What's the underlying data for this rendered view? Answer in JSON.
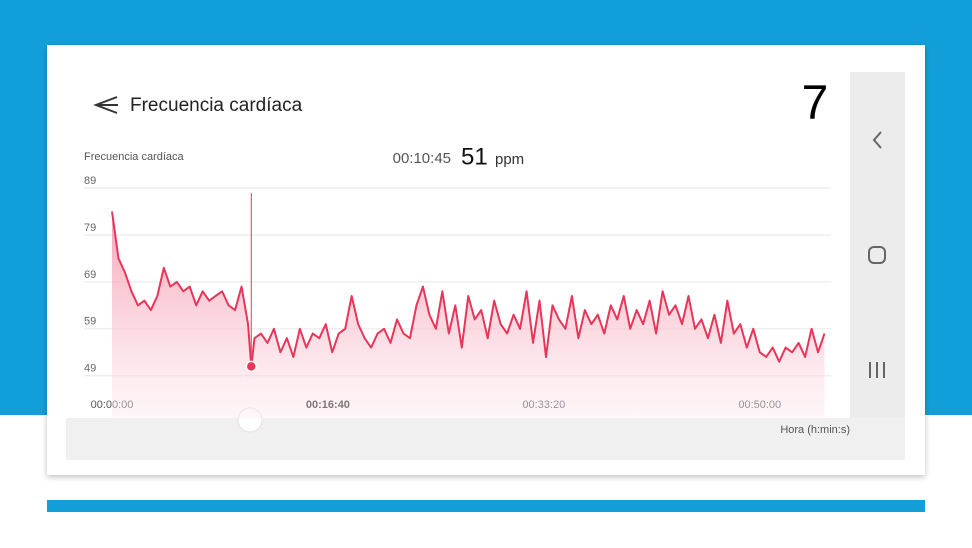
{
  "header": {
    "title": "Frecuencia cardíaca",
    "step": "7"
  },
  "chart_data": {
    "type": "line",
    "title": "Frecuencia cardíaca",
    "x_label": "Hora (h:min:s)",
    "x": [
      0,
      30,
      60,
      90,
      120,
      150,
      180,
      210,
      240,
      270,
      300,
      330,
      360,
      390,
      420,
      450,
      480,
      510,
      540,
      570,
      600,
      630,
      645,
      660,
      690,
      720,
      750,
      780,
      810,
      840,
      870,
      900,
      930,
      960,
      990,
      1020,
      1050,
      1080,
      1110,
      1140,
      1170,
      1200,
      1230,
      1260,
      1290,
      1320,
      1350,
      1380,
      1410,
      1440,
      1470,
      1500,
      1530,
      1560,
      1590,
      1620,
      1650,
      1680,
      1710,
      1740,
      1770,
      1800,
      1830,
      1860,
      1890,
      1920,
      1950,
      1980,
      2010,
      2040,
      2070,
      2100,
      2130,
      2160,
      2190,
      2220,
      2250,
      2280,
      2310,
      2340,
      2370,
      2400,
      2430,
      2460,
      2490,
      2520,
      2550,
      2580,
      2610,
      2640,
      2670,
      2700,
      2730,
      2760,
      2790,
      2820,
      2850,
      2880,
      2910,
      2940,
      2970,
      3000,
      3030,
      3060,
      3090,
      3120,
      3150,
      3180,
      3210,
      3240,
      3270,
      3300
    ],
    "values": [
      84,
      74,
      71,
      67,
      64,
      65,
      63,
      66,
      72,
      68,
      69,
      67,
      68,
      64,
      67,
      65,
      66,
      67,
      64,
      63,
      68,
      60,
      51,
      57,
      58,
      56,
      59,
      54,
      57,
      53,
      59,
      55,
      58,
      57,
      60,
      54,
      58,
      59,
      66,
      60,
      57,
      55,
      58,
      59,
      56,
      61,
      58,
      57,
      64,
      68,
      62,
      59,
      67,
      58,
      64,
      55,
      66,
      61,
      63,
      57,
      65,
      60,
      58,
      62,
      59,
      67,
      56,
      65,
      53,
      64,
      61,
      59,
      66,
      57,
      63,
      60,
      62,
      58,
      64,
      61,
      66,
      59,
      63,
      60,
      65,
      58,
      67,
      62,
      64,
      60,
      66,
      59,
      61,
      57,
      62,
      56,
      65,
      58,
      60,
      55,
      59,
      54,
      53,
      55,
      52,
      55,
      54,
      56,
      53,
      59,
      54,
      58
    ],
    "color": "#e8365a",
    "xlim": [
      0,
      3330
    ],
    "xticks": [
      {
        "value": 0,
        "label": "00:00:00"
      },
      {
        "value": 1000,
        "label": "00:16:40"
      },
      {
        "value": 2000,
        "label": "00:33:20"
      },
      {
        "value": 3000,
        "label": "00:50:00"
      }
    ],
    "ylim": [
      40,
      89
    ],
    "yticks": [
      49,
      59,
      69,
      79,
      89
    ],
    "grid": true,
    "selected": {
      "x": 645,
      "label": "00:10:45",
      "value": 51,
      "unit": "ppm"
    }
  }
}
